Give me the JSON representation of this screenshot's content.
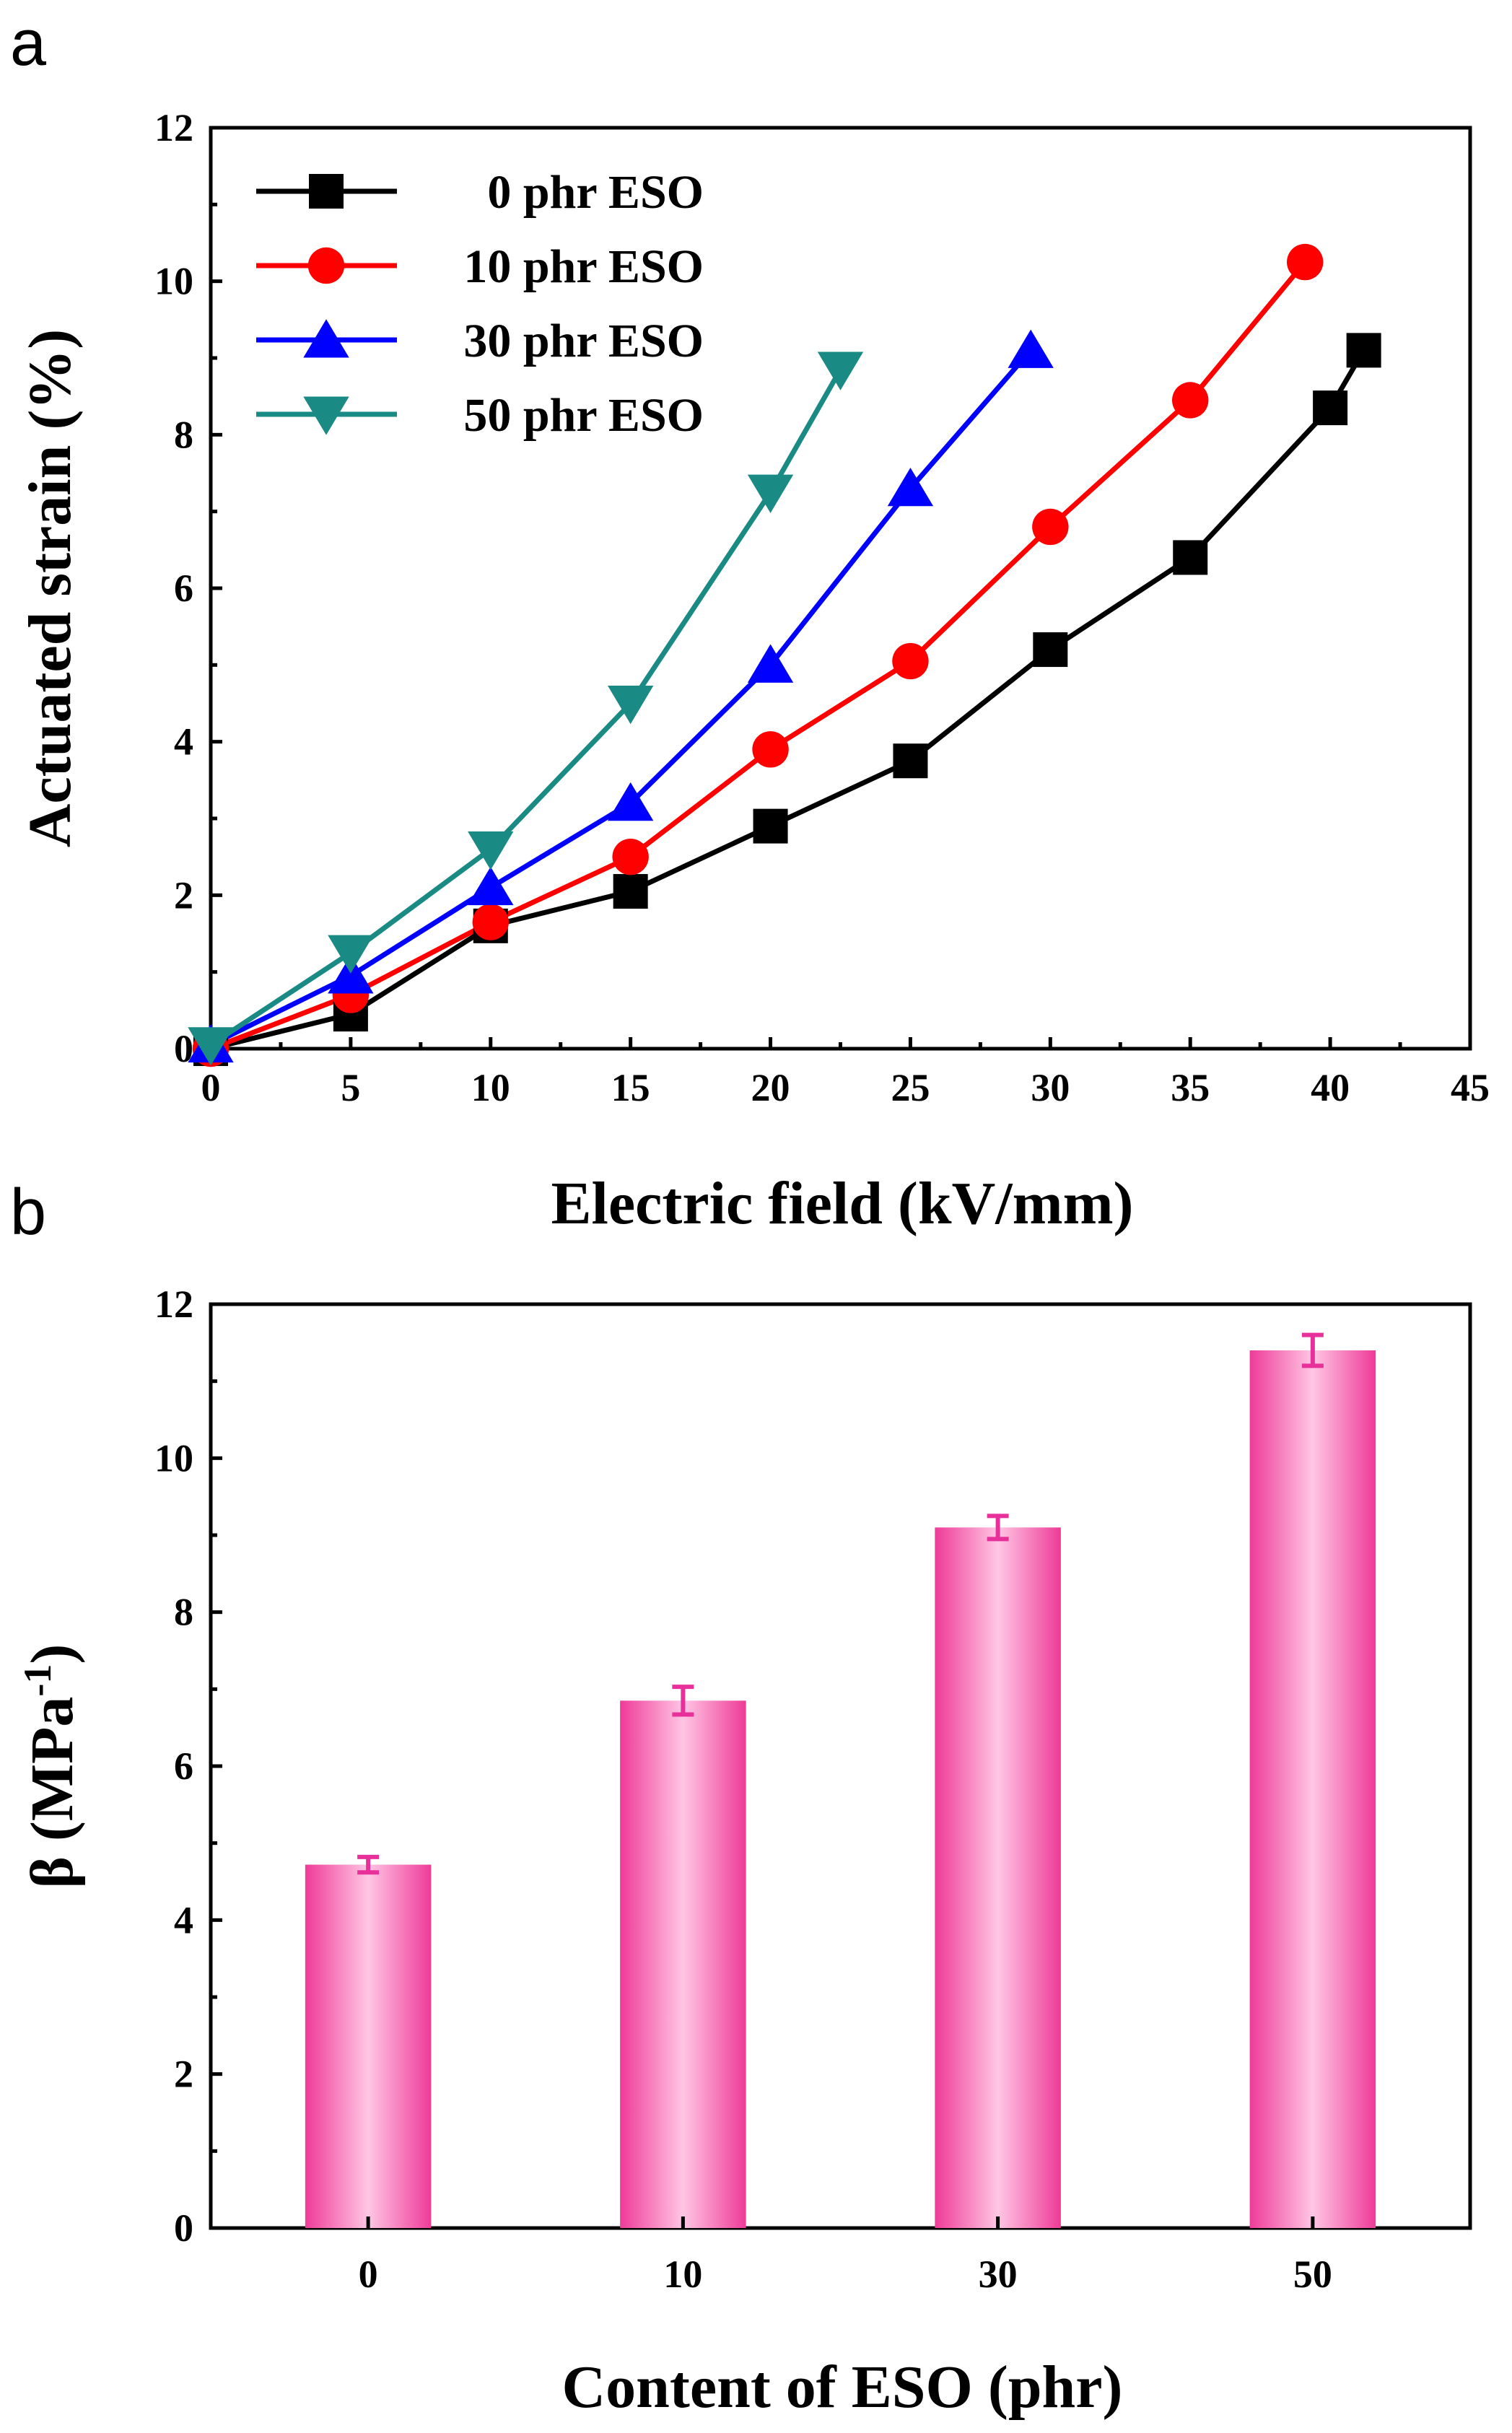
{
  "chart_data": [
    {
      "type": "line",
      "panel": "a",
      "xlabel": "Electric field (kV/mm)",
      "ylabel": "Actuated strain (%)",
      "xlim": [
        0,
        45
      ],
      "ylim": [
        0,
        12
      ],
      "xticks": [
        0,
        5,
        10,
        15,
        20,
        25,
        30,
        35,
        40,
        45
      ],
      "yticks": [
        0,
        2,
        4,
        6,
        8,
        10,
        12
      ],
      "legend_position": "top-left",
      "grid": false,
      "series": [
        {
          "name": "0 phr ESO",
          "color": "#000000",
          "marker": "square",
          "x": [
            0,
            5,
            10,
            15,
            20,
            25,
            30,
            35,
            40,
            41.2
          ],
          "y": [
            0,
            0.45,
            1.6,
            2.05,
            2.9,
            3.75,
            5.2,
            6.4,
            8.35,
            9.1
          ]
        },
        {
          "name": "10 phr ESO",
          "color": "#ff0000",
          "marker": "circle",
          "x": [
            0,
            5,
            10,
            15,
            20,
            25,
            30,
            35,
            39.1
          ],
          "y": [
            0,
            0.7,
            1.65,
            2.5,
            3.9,
            5.05,
            6.8,
            8.45,
            10.25
          ]
        },
        {
          "name": "30 phr ESO",
          "color": "#0000ff",
          "marker": "triangle-up",
          "x": [
            0,
            5,
            10,
            15,
            20,
            25,
            29.3
          ],
          "y": [
            0.05,
            0.95,
            2.1,
            3.2,
            5.0,
            7.3,
            9.1
          ]
        },
        {
          "name": "50 phr ESO",
          "color": "#1a8a84",
          "marker": "triangle-down",
          "x": [
            0,
            5,
            10,
            15,
            20,
            22.5
          ],
          "y": [
            0.05,
            1.25,
            2.6,
            4.5,
            7.25,
            8.85
          ]
        }
      ]
    },
    {
      "type": "bar",
      "panel": "b",
      "xlabel": "Content of ESO (phr)",
      "ylabel": "β (MPa",
      "ylabel_sup": "-1",
      "ylabel_close": ")",
      "categories": [
        "0",
        "10",
        "30",
        "50"
      ],
      "values": [
        4.72,
        6.85,
        9.1,
        11.4
      ],
      "errors": [
        0.1,
        0.18,
        0.15,
        0.2
      ],
      "ylim": [
        0,
        12
      ],
      "yticks": [
        0,
        2,
        4,
        6,
        8,
        10,
        12
      ],
      "bar_color": "#f0409a",
      "error_color": "#e8309a",
      "grid": false
    }
  ],
  "panel_labels": {
    "a": "a",
    "b": "b"
  }
}
